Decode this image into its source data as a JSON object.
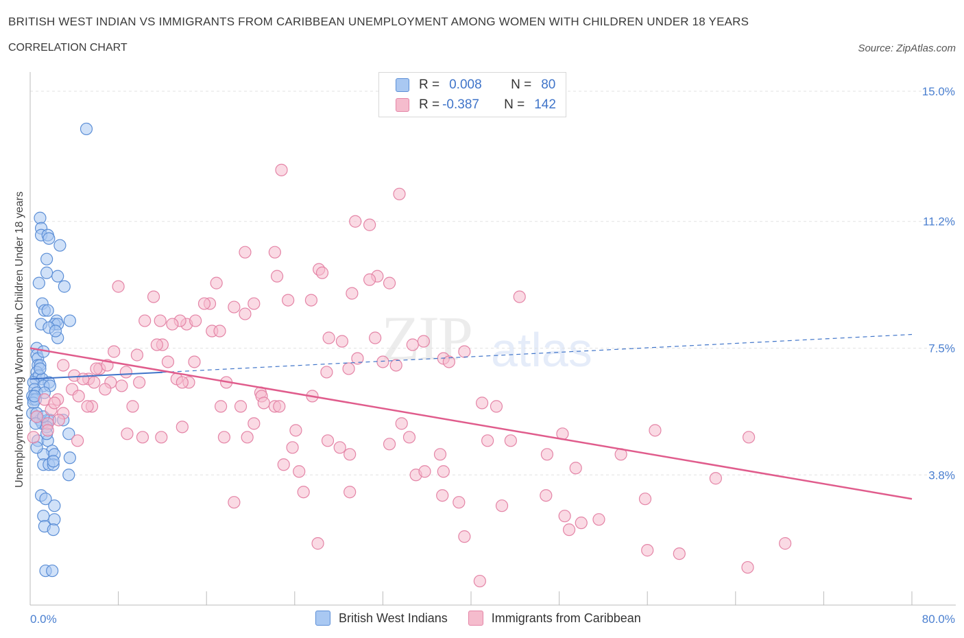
{
  "header": {
    "title": "BRITISH WEST INDIAN VS IMMIGRANTS FROM CARIBBEAN UNEMPLOYMENT AMONG WOMEN WITH CHILDREN UNDER 18 YEARS",
    "subtitle": "CORRELATION CHART",
    "source": "Source: ZipAtlas.com"
  },
  "watermark": {
    "zip": "ZIP",
    "atlas": "atlas"
  },
  "legend": {
    "rows": [
      {
        "r_label": "R =",
        "r_value": "0.008",
        "n_label": "N =",
        "n_value": "80",
        "color": "#a9c8f2"
      },
      {
        "r_label": "R =",
        "r_value": "-0.387",
        "n_label": "N =",
        "n_value": "142",
        "color": "#f5bccd"
      }
    ]
  },
  "bottom_legend": {
    "series1": "British West Indians",
    "series2": "Immigrants from Caribbean"
  },
  "colors": {
    "blue_fill": "#a9c8f2",
    "blue_stroke": "#5b8ed6",
    "pink_fill": "#f5bccd",
    "pink_stroke": "#e484a6",
    "blue_line": "#3f74c9",
    "pink_line": "#e05c8c",
    "grid": "#e2e2e2",
    "tick_label": "#4a7fd0"
  },
  "chart_data": {
    "type": "scatter",
    "xlabel": "",
    "ylabel": "Unemployment Among Women with Children Under 18 years",
    "xlim": [
      0,
      80
    ],
    "ylim": [
      0,
      15.0
    ],
    "x_tick_labels": [
      {
        "value": 0,
        "label": "0.0%"
      },
      {
        "value": 80,
        "label": "80.0%"
      }
    ],
    "y_tick_labels": [
      {
        "value": 3.8,
        "label": "3.8%"
      },
      {
        "value": 7.5,
        "label": "7.5%"
      },
      {
        "value": 11.2,
        "label": "11.2%"
      },
      {
        "value": 15.0,
        "label": "15.0%"
      }
    ],
    "grid": true,
    "legend_position": "top-center",
    "series": [
      {
        "name": "British West Indians",
        "trend": {
          "x": [
            0,
            80
          ],
          "y": [
            6.6,
            7.9
          ],
          "style": "solid-then-dashed",
          "solid_until_x": 12
        },
        "points": [
          [
            5.1,
            13.9
          ],
          [
            0.9,
            11.3
          ],
          [
            1.0,
            11.0
          ],
          [
            1.0,
            10.8
          ],
          [
            1.6,
            10.8
          ],
          [
            1.7,
            10.7
          ],
          [
            2.7,
            10.5
          ],
          [
            1.5,
            10.1
          ],
          [
            1.5,
            9.7
          ],
          [
            2.5,
            9.6
          ],
          [
            0.8,
            9.4
          ],
          [
            3.1,
            9.3
          ],
          [
            1.1,
            8.8
          ],
          [
            1.3,
            8.6
          ],
          [
            1.6,
            8.6
          ],
          [
            2.4,
            8.3
          ],
          [
            3.6,
            8.3
          ],
          [
            1.0,
            8.2
          ],
          [
            2.2,
            8.2
          ],
          [
            2.5,
            8.2
          ],
          [
            1.7,
            8.1
          ],
          [
            2.5,
            7.8
          ],
          [
            0.6,
            7.5
          ],
          [
            0.6,
            7.3
          ],
          [
            0.7,
            7.2
          ],
          [
            0.7,
            7.0
          ],
          [
            0.9,
            7.0
          ],
          [
            0.6,
            6.8
          ],
          [
            0.5,
            6.6
          ],
          [
            0.8,
            6.7
          ],
          [
            1.1,
            6.6
          ],
          [
            1.7,
            6.5
          ],
          [
            0.3,
            6.5
          ],
          [
            1.2,
            6.4
          ],
          [
            1.8,
            6.4
          ],
          [
            0.4,
            6.3
          ],
          [
            0.6,
            6.2
          ],
          [
            1.3,
            6.2
          ],
          [
            0.2,
            6.1
          ],
          [
            0.3,
            6.0
          ],
          [
            0.5,
            6.0
          ],
          [
            0.3,
            5.9
          ],
          [
            0.2,
            5.6
          ],
          [
            0.6,
            5.6
          ],
          [
            0.9,
            5.4
          ],
          [
            1.6,
            5.4
          ],
          [
            1.8,
            5.4
          ],
          [
            3.0,
            5.4
          ],
          [
            1.1,
            5.3
          ],
          [
            1.5,
            5.2
          ],
          [
            0.6,
            5.5
          ],
          [
            1.2,
            5.5
          ],
          [
            3.5,
            5.0
          ],
          [
            0.7,
            4.8
          ],
          [
            1.6,
            4.8
          ],
          [
            2.0,
            4.5
          ],
          [
            1.2,
            4.4
          ],
          [
            2.2,
            4.4
          ],
          [
            1.2,
            4.1
          ],
          [
            1.7,
            4.1
          ],
          [
            2.1,
            4.1
          ],
          [
            2.1,
            4.2
          ],
          [
            3.6,
            4.3
          ],
          [
            3.5,
            3.8
          ],
          [
            1.0,
            3.2
          ],
          [
            1.4,
            3.1
          ],
          [
            2.2,
            2.9
          ],
          [
            1.2,
            2.6
          ],
          [
            2.2,
            2.5
          ],
          [
            1.3,
            2.3
          ],
          [
            2.1,
            2.2
          ],
          [
            1.4,
            1.0
          ],
          [
            2.0,
            1.0
          ],
          [
            0.4,
            6.1
          ],
          [
            0.5,
            5.3
          ],
          [
            0.9,
            6.9
          ],
          [
            1.2,
            7.4
          ],
          [
            2.3,
            8.0
          ],
          [
            1.5,
            5.0
          ],
          [
            0.6,
            4.6
          ]
        ]
      },
      {
        "name": "Immigrants from Caribbean",
        "trend": {
          "x": [
            0,
            80
          ],
          "y": [
            7.5,
            3.1
          ],
          "style": "solid"
        },
        "points": [
          [
            22.8,
            12.7
          ],
          [
            33.5,
            12.0
          ],
          [
            29.5,
            11.2
          ],
          [
            30.8,
            11.1
          ],
          [
            19.5,
            10.3
          ],
          [
            22.2,
            10.3
          ],
          [
            26.2,
            9.8
          ],
          [
            26.5,
            9.7
          ],
          [
            31.5,
            9.6
          ],
          [
            22.4,
            9.6
          ],
          [
            30.8,
            9.5
          ],
          [
            32.6,
            9.4
          ],
          [
            16.9,
            9.4
          ],
          [
            8.0,
            9.3
          ],
          [
            11.2,
            9.0
          ],
          [
            29.2,
            9.1
          ],
          [
            44.4,
            9.0
          ],
          [
            16.3,
            8.8
          ],
          [
            15.8,
            8.8
          ],
          [
            20.3,
            8.8
          ],
          [
            25.5,
            8.9
          ],
          [
            23.4,
            8.9
          ],
          [
            18.5,
            8.7
          ],
          [
            19.5,
            8.5
          ],
          [
            10.4,
            8.3
          ],
          [
            11.8,
            8.3
          ],
          [
            14.2,
            8.2
          ],
          [
            13.6,
            8.3
          ],
          [
            15.0,
            8.3
          ],
          [
            12.9,
            8.2
          ],
          [
            16.5,
            8.0
          ],
          [
            17.2,
            8.0
          ],
          [
            27.1,
            7.8
          ],
          [
            28.3,
            7.7
          ],
          [
            31.3,
            7.8
          ],
          [
            35.7,
            7.7
          ],
          [
            12.0,
            7.6
          ],
          [
            11.5,
            7.6
          ],
          [
            34.7,
            7.6
          ],
          [
            39.4,
            7.4
          ],
          [
            7.6,
            7.4
          ],
          [
            9.7,
            7.3
          ],
          [
            37.5,
            7.2
          ],
          [
            29.7,
            7.2
          ],
          [
            12.5,
            7.1
          ],
          [
            14.9,
            7.1
          ],
          [
            38.0,
            7.1
          ],
          [
            28.9,
            6.9
          ],
          [
            32.0,
            7.1
          ],
          [
            33.2,
            7.0
          ],
          [
            3.0,
            7.0
          ],
          [
            6.3,
            6.9
          ],
          [
            8.7,
            6.8
          ],
          [
            26.9,
            6.8
          ],
          [
            4.0,
            6.7
          ],
          [
            5.3,
            6.6
          ],
          [
            4.8,
            6.6
          ],
          [
            13.3,
            6.6
          ],
          [
            14.4,
            6.5
          ],
          [
            13.8,
            6.5
          ],
          [
            17.8,
            6.5
          ],
          [
            9.9,
            6.5
          ],
          [
            7.3,
            6.5
          ],
          [
            5.8,
            6.5
          ],
          [
            8.3,
            6.4
          ],
          [
            3.8,
            6.3
          ],
          [
            20.9,
            6.2
          ],
          [
            21.0,
            6.1
          ],
          [
            4.4,
            6.1
          ],
          [
            25.6,
            6.1
          ],
          [
            6.8,
            6.3
          ],
          [
            1.3,
            6.0
          ],
          [
            2.5,
            6.0
          ],
          [
            5.6,
            5.8
          ],
          [
            9.3,
            5.8
          ],
          [
            17.3,
            5.8
          ],
          [
            19.1,
            5.8
          ],
          [
            21.2,
            5.9
          ],
          [
            22.2,
            5.8
          ],
          [
            22.6,
            5.8
          ],
          [
            41.0,
            5.9
          ],
          [
            42.3,
            5.8
          ],
          [
            5.2,
            5.8
          ],
          [
            1.9,
            5.7
          ],
          [
            3.0,
            5.6
          ],
          [
            2.6,
            5.4
          ],
          [
            1.6,
            5.3
          ],
          [
            20.3,
            5.3
          ],
          [
            33.7,
            5.3
          ],
          [
            13.8,
            5.2
          ],
          [
            24.1,
            5.1
          ],
          [
            8.8,
            5.0
          ],
          [
            10.2,
            4.9
          ],
          [
            11.9,
            4.9
          ],
          [
            17.6,
            4.9
          ],
          [
            19.7,
            4.9
          ],
          [
            34.4,
            4.9
          ],
          [
            48.3,
            5.0
          ],
          [
            56.7,
            5.1
          ],
          [
            65.2,
            4.9
          ],
          [
            27.0,
            4.8
          ],
          [
            41.5,
            4.8
          ],
          [
            43.6,
            4.8
          ],
          [
            4.3,
            4.8
          ],
          [
            32.6,
            4.7
          ],
          [
            23.8,
            4.6
          ],
          [
            28.1,
            4.6
          ],
          [
            29.0,
            4.4
          ],
          [
            46.9,
            4.4
          ],
          [
            53.6,
            4.4
          ],
          [
            37.2,
            4.4
          ],
          [
            23.0,
            4.1
          ],
          [
            24.4,
            3.9
          ],
          [
            37.5,
            3.9
          ],
          [
            35.0,
            3.8
          ],
          [
            35.8,
            3.9
          ],
          [
            49.5,
            4.0
          ],
          [
            62.2,
            3.7
          ],
          [
            29.0,
            3.3
          ],
          [
            24.8,
            3.3
          ],
          [
            37.4,
            3.2
          ],
          [
            46.8,
            3.2
          ],
          [
            55.8,
            3.1
          ],
          [
            18.5,
            3.0
          ],
          [
            38.9,
            3.0
          ],
          [
            42.8,
            2.9
          ],
          [
            48.5,
            2.6
          ],
          [
            50.0,
            2.4
          ],
          [
            51.6,
            2.5
          ],
          [
            48.9,
            2.2
          ],
          [
            39.4,
            2.0
          ],
          [
            26.1,
            1.8
          ],
          [
            56.0,
            1.6
          ],
          [
            58.9,
            1.5
          ],
          [
            68.5,
            1.8
          ],
          [
            65.1,
            1.1
          ],
          [
            40.8,
            0.7
          ],
          [
            2.2,
            5.9
          ],
          [
            0.6,
            5.5
          ],
          [
            0.3,
            4.9
          ],
          [
            1.6,
            5.1
          ],
          [
            6.0,
            6.9
          ],
          [
            7.0,
            7.0
          ]
        ]
      }
    ]
  }
}
